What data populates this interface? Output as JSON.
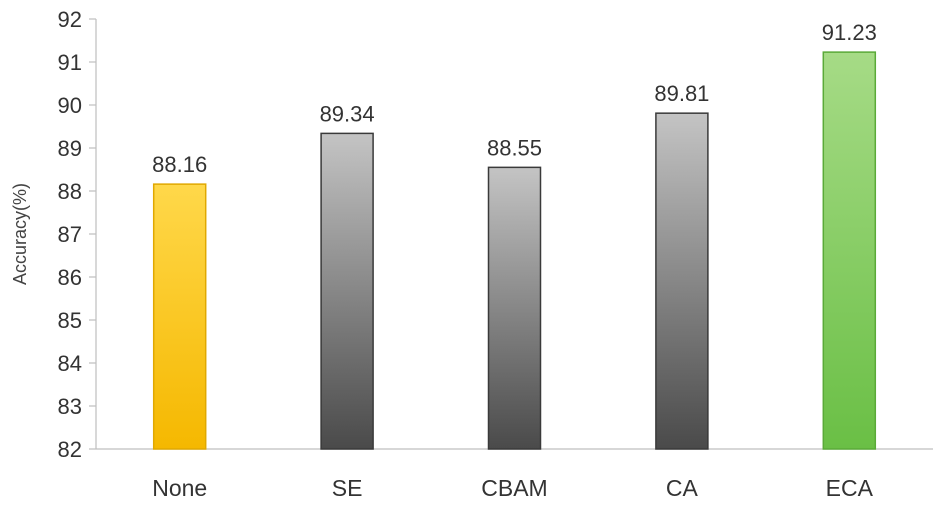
{
  "chart_data": {
    "type": "bar",
    "categories": [
      "None",
      "SE",
      "CBAM",
      "CA",
      "ECA"
    ],
    "values": [
      88.16,
      89.34,
      88.55,
      89.81,
      91.23
    ],
    "data_labels": [
      "88.16",
      "89.34",
      "88.55",
      "89.81",
      "91.23"
    ],
    "ylabel": "Accuracy(%)",
    "ylim": [
      82,
      92
    ],
    "yticks": [
      "82",
      "83",
      "84",
      "85",
      "86",
      "87",
      "88",
      "89",
      "90",
      "91",
      "92"
    ],
    "grid": false,
    "legend": "none",
    "bar_styles": [
      {
        "top": "#ffd84a",
        "bottom": "#f5b800",
        "stroke": "#e0a800"
      },
      {
        "top": "#c4c4c4",
        "bottom": "#4a4a4a",
        "stroke": "#3a3a3a"
      },
      {
        "top": "#c4c4c4",
        "bottom": "#4a4a4a",
        "stroke": "#3a3a3a"
      },
      {
        "top": "#c4c4c4",
        "bottom": "#4a4a4a",
        "stroke": "#3a3a3a"
      },
      {
        "top": "#a6db86",
        "bottom": "#6abf45",
        "stroke": "#5aaa38"
      }
    ],
    "axis_color": "#bfbfbf"
  }
}
